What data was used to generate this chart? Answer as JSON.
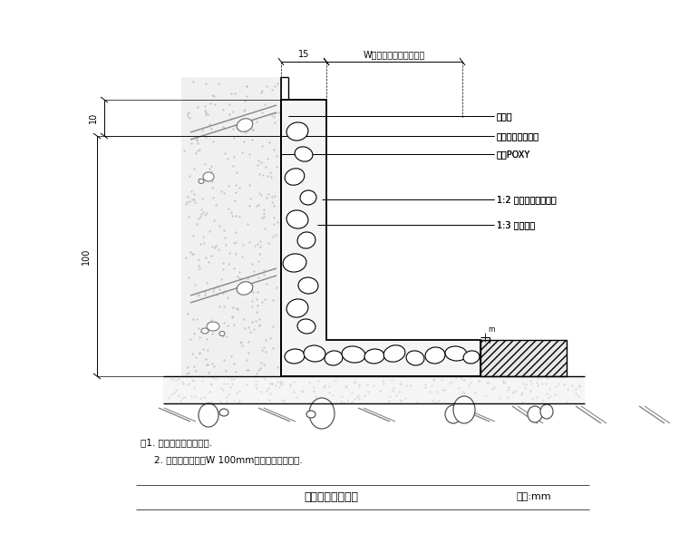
{
  "title": "粉石子踢脚大样图",
  "unit_label": "单位:mm",
  "note1": "注1. 粉石子采天然彩粉石.",
  "note2": "2. 粉碎粉石子粒波W 100mm半径者平分割调整.",
  "label1": "粉面层",
  "label2": "網猛刷涂一底二度",
  "label3": "涂帷POXY",
  "label4": "1:2 水泥粉天然彩石粉",
  "label5": "1:3 水泥粉刷",
  "dim_15": "15",
  "dim_W": "W（另详平面示意详图）",
  "dim_10": "10",
  "dim_100": "100",
  "bg_color": "#ffffff"
}
